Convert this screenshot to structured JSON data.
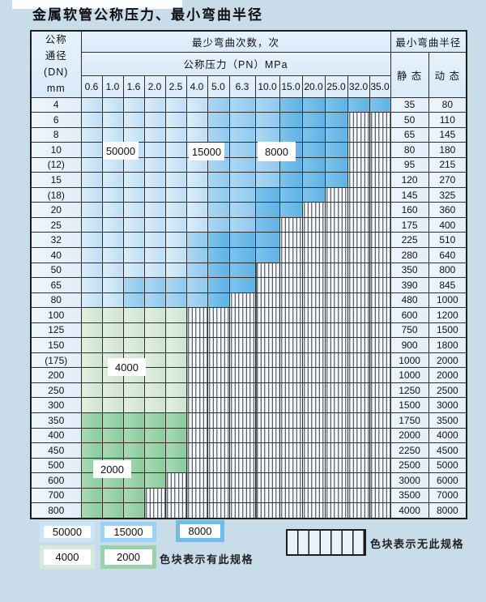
{
  "title": "金属软管公称压力、最小弯曲半径",
  "table": {
    "corner_lines": [
      "公称",
      "通径",
      "(DN)",
      "mm"
    ],
    "cycles_header": "最少弯曲次数，次",
    "pressure_header": "公称压力（PN）MPa",
    "radius_header": "最小弯曲半径",
    "static_label": "静 态",
    "dynamic_label": "动 态",
    "pressures": [
      "0.6",
      "1.0",
      "1.6",
      "2.0",
      "2.5",
      "4.0",
      "5.0",
      "6.3",
      "10.0",
      "15.0",
      "20.0",
      "25.0",
      "32.0",
      "35.0"
    ],
    "rows": [
      {
        "dn": "4",
        "cells": "AAAAAABBBCCCCC",
        "static": "35",
        "dynamic": "80"
      },
      {
        "dn": "6",
        "cells": "AAAAAABBBCCCXX",
        "static": "50",
        "dynamic": "110"
      },
      {
        "dn": "8",
        "cells": "AAAAAABBBCCCXX",
        "static": "65",
        "dynamic": "145"
      },
      {
        "dn": "10",
        "cells": "AAAAAABBBCCCXX",
        "static": "80",
        "dynamic": "180"
      },
      {
        "dn": "(12)",
        "cells": "AAAAAABBBCCCXX",
        "static": "95",
        "dynamic": "215"
      },
      {
        "dn": "15",
        "cells": "AAAAAABBBCCCXX",
        "static": "120",
        "dynamic": "270"
      },
      {
        "dn": "(18)",
        "cells": "AAAAAABBCCCXXX",
        "static": "145",
        "dynamic": "325"
      },
      {
        "dn": "20",
        "cells": "AAAAAABBCCXXXX",
        "static": "160",
        "dynamic": "360"
      },
      {
        "dn": "25",
        "cells": "AAAAAABBCXXXXX",
        "static": "175",
        "dynamic": "400"
      },
      {
        "dn": "32",
        "cells": "AAAAABCCCXXXXX",
        "static": "225",
        "dynamic": "510"
      },
      {
        "dn": "40",
        "cells": "AAAAABCCCXXXXX",
        "static": "280",
        "dynamic": "640"
      },
      {
        "dn": "50",
        "cells": "AAAAABCCXXXXXX",
        "static": "350",
        "dynamic": "800"
      },
      {
        "dn": "65",
        "cells": "AABBBBCCXXXXXX",
        "static": "390",
        "dynamic": "845"
      },
      {
        "dn": "80",
        "cells": "AABBBBCXXXXXXX",
        "static": "480",
        "dynamic": "1000"
      },
      {
        "dn": "100",
        "cells": "DDDDDXXXXXXXXX",
        "static": "600",
        "dynamic": "1200"
      },
      {
        "dn": "125",
        "cells": "DDDDDXXXXXXXXX",
        "static": "750",
        "dynamic": "1500"
      },
      {
        "dn": "150",
        "cells": "DDDDDXXXXXXXXX",
        "static": "900",
        "dynamic": "1800"
      },
      {
        "dn": "(175)",
        "cells": "DDDDDXXXXXXXXX",
        "static": "1000",
        "dynamic": "2000"
      },
      {
        "dn": "200",
        "cells": "DDDDDXXXXXXXXX",
        "static": "1000",
        "dynamic": "2000"
      },
      {
        "dn": "250",
        "cells": "DDDDDXXXXXXXXX",
        "static": "1250",
        "dynamic": "2500"
      },
      {
        "dn": "300",
        "cells": "DDDDDXXXXXXXXX",
        "static": "1500",
        "dynamic": "3000"
      },
      {
        "dn": "350",
        "cells": "EEEEEXXXXXXXXX",
        "static": "1750",
        "dynamic": "3500"
      },
      {
        "dn": "400",
        "cells": "EEEEEXXXXXXXXX",
        "static": "2000",
        "dynamic": "4000"
      },
      {
        "dn": "450",
        "cells": "EEEEEXXXXXXXXX",
        "static": "2250",
        "dynamic": "4500"
      },
      {
        "dn": "500",
        "cells": "EEEEEXXXXXXXXX",
        "static": "2500",
        "dynamic": "5000"
      },
      {
        "dn": "600",
        "cells": "EEEEXXXXXXXXXX",
        "static": "3000",
        "dynamic": "6000"
      },
      {
        "dn": "700",
        "cells": "EEEXXXXXXXXXXX",
        "static": "3500",
        "dynamic": "7000"
      },
      {
        "dn": "800",
        "cells": "EEEXXXXXXXXXXX",
        "static": "4000",
        "dynamic": "8000"
      }
    ]
  },
  "bands": {
    "A": {
      "cycles": "50000",
      "color": "#cde6f7"
    },
    "B": {
      "cycles": "15000",
      "color": "#9fd1f1"
    },
    "C": {
      "cycles": "8000",
      "color": "#6fbce9"
    },
    "D": {
      "cycles": "4000",
      "color": "#d7e9d8"
    },
    "E": {
      "cycles": "2000",
      "color": "#99d2a8"
    }
  },
  "overlay_labels": [
    {
      "text": "50000"
    },
    {
      "text": "15000"
    },
    {
      "text": "8000"
    },
    {
      "text": "4000"
    },
    {
      "text": "2000"
    }
  ],
  "legend": {
    "swatches": [
      {
        "text": "50000",
        "band": "A"
      },
      {
        "text": "15000",
        "band": "B"
      },
      {
        "text": "8000",
        "band": "C"
      },
      {
        "text": "4000",
        "band": "D"
      },
      {
        "text": "2000",
        "band": "E"
      }
    ],
    "has_spec_label": "色块表示有此规格",
    "no_spec_label": "色块表示无此规格"
  }
}
